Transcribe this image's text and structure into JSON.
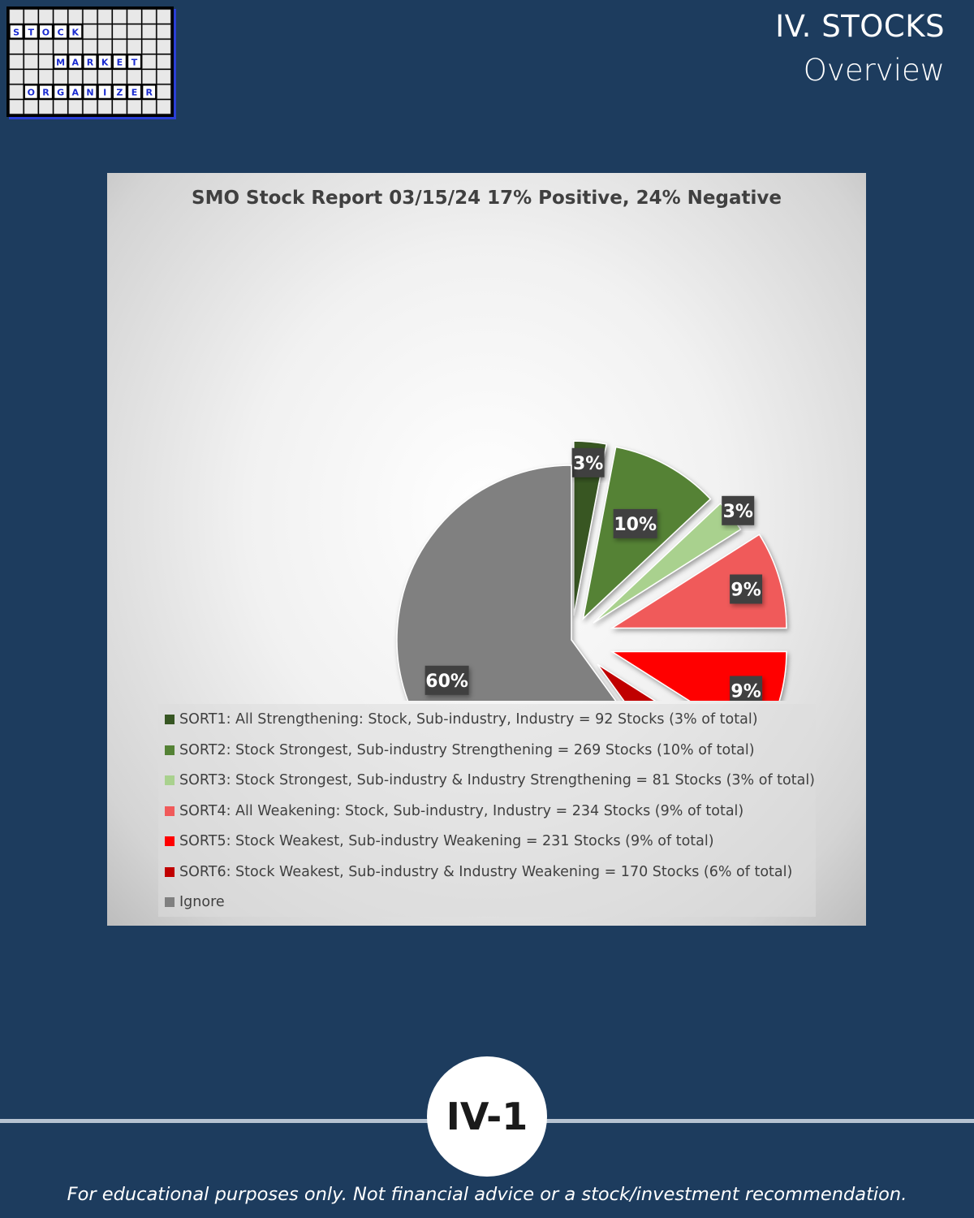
{
  "logo": {
    "row1": [
      "S",
      "T",
      "O",
      "C",
      "K"
    ],
    "row2": [
      "M",
      "A",
      "R",
      "K",
      "E",
      "T"
    ],
    "row3": [
      "O",
      "R",
      "G",
      "A",
      "N",
      "I",
      "Z",
      "E",
      "R"
    ]
  },
  "header": {
    "section": "IV. STOCKS",
    "subtitle": "Overview"
  },
  "chart_data": {
    "type": "pie",
    "title": "SMO Stock Report 03/15/24 17% Positive, 24% Negative",
    "slices": [
      {
        "name": "SORT1: All Strengthening: Stock, Sub-industry, Industry = 92 Stocks (3% of total)",
        "value": 92,
        "label": "3%",
        "color": "#375623"
      },
      {
        "name": "SORT2: Stock Strongest, Sub-industry Strengthening = 269 Stocks (10% of total)",
        "value": 269,
        "label": "10%",
        "color": "#548235"
      },
      {
        "name": "SORT3: Stock Strongest, Sub-industry & Industry Strengthening = 81 Stocks (3% of total)",
        "value": 81,
        "label": "3%",
        "color": "#a9d18e"
      },
      {
        "name": "SORT4: All Weakening: Stock, Sub-industry, Industry = 234 Stocks (9% of total)",
        "value": 234,
        "label": "9%",
        "color": "#f05a5a"
      },
      {
        "name": "SORT5: Stock Weakest, Sub-industry Weakening = 231 Stocks (9% of total)",
        "value": 231,
        "label": "9%",
        "color": "#ff0000"
      },
      {
        "name": "SORT6: Stock Weakest, Sub-industry & Industry Weakening = 170 Stocks (6% of total)",
        "value": 170,
        "label": "6%",
        "color": "#c00000"
      },
      {
        "name": "Ignore",
        "value": 60,
        "value_unit": "percent",
        "label": "60%",
        "color": "#808080"
      }
    ],
    "percentages": [
      3,
      10,
      3,
      9,
      9,
      6,
      60
    ],
    "legend_position": "bottom",
    "exploded": true
  },
  "footer": {
    "page_badge": "IV-1",
    "disclaimer": "For educational purposes only. Not financial advice or a stock/investment recommendation."
  }
}
